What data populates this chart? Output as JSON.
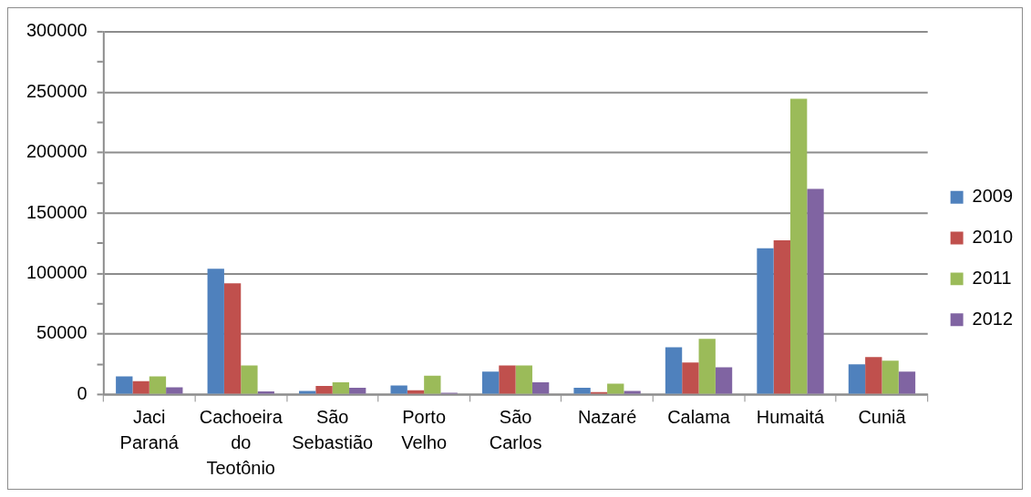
{
  "chart_data": {
    "type": "bar",
    "categories": [
      "Jaci Paraná",
      "Cachoeira do Teotônio",
      "São Sebastião",
      "Porto Velho",
      "São Carlos",
      "Nazaré",
      "Calama",
      "Humaitá",
      "Cuniã"
    ],
    "series": [
      {
        "name": "2009",
        "color": "#4f81bd",
        "values": [
          15000,
          104000,
          3000,
          7500,
          19000,
          5500,
          39000,
          121000,
          25000
        ]
      },
      {
        "name": "2010",
        "color": "#c0504d",
        "values": [
          11000,
          92000,
          7000,
          3500,
          24000,
          2000,
          26500,
          127500,
          31000
        ]
      },
      {
        "name": "2011",
        "color": "#9bbb59",
        "values": [
          15000,
          24000,
          10000,
          15500,
          24000,
          9000,
          46000,
          244500,
          28000
        ]
      },
      {
        "name": "2012",
        "color": "#8064a2",
        "values": [
          6000,
          2500,
          5500,
          1500,
          10000,
          3000,
          22500,
          170000,
          19000
        ]
      }
    ],
    "ylim": [
      0,
      300000
    ],
    "yticks": [
      0,
      {
        "value": 25000,
        "label": null
      },
      50000,
      {
        "value": 75000,
        "label": null
      },
      100000,
      {
        "value": 125000,
        "label": null
      },
      150000,
      {
        "value": 175000,
        "label": null
      },
      200000,
      {
        "value": 225000,
        "label": null
      },
      250000,
      {
        "value": 275000,
        "label": null
      },
      300000
    ],
    "grid": "y",
    "legend": "right"
  }
}
